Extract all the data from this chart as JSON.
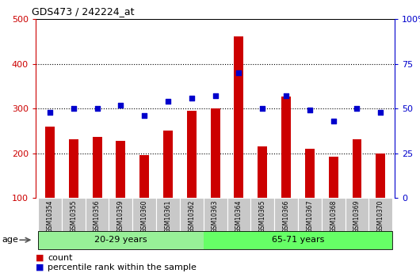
{
  "title": "GDS473 / 242224_at",
  "samples": [
    "GSM10354",
    "GSM10355",
    "GSM10356",
    "GSM10359",
    "GSM10360",
    "GSM10361",
    "GSM10362",
    "GSM10363",
    "GSM10364",
    "GSM10365",
    "GSM10366",
    "GSM10367",
    "GSM10368",
    "GSM10369",
    "GSM10370"
  ],
  "counts": [
    260,
    232,
    236,
    228,
    196,
    250,
    295,
    300,
    462,
    216,
    326,
    210,
    193,
    232,
    200
  ],
  "percentile_ranks": [
    48,
    50,
    50,
    52,
    46,
    54,
    56,
    57,
    70,
    50,
    57,
    49,
    43,
    50,
    48
  ],
  "group1_label": "20-29 years",
  "group2_label": "65-71 years",
  "group1_count": 7,
  "group2_count": 8,
  "bar_color": "#cc0000",
  "dot_color": "#0000cc",
  "left_ylim": [
    100,
    500
  ],
  "left_yticks": [
    100,
    200,
    300,
    400,
    500
  ],
  "right_ylim": [
    0,
    100
  ],
  "right_yticks": [
    0,
    25,
    50,
    75,
    100
  ],
  "right_yticklabels": [
    "0",
    "25",
    "50",
    "75",
    "100%"
  ],
  "bg_color": "#c8c8c8",
  "group1_color": "#98f098",
  "group2_color": "#66ff66",
  "legend_count_label": "count",
  "legend_pct_label": "percentile rank within the sample"
}
